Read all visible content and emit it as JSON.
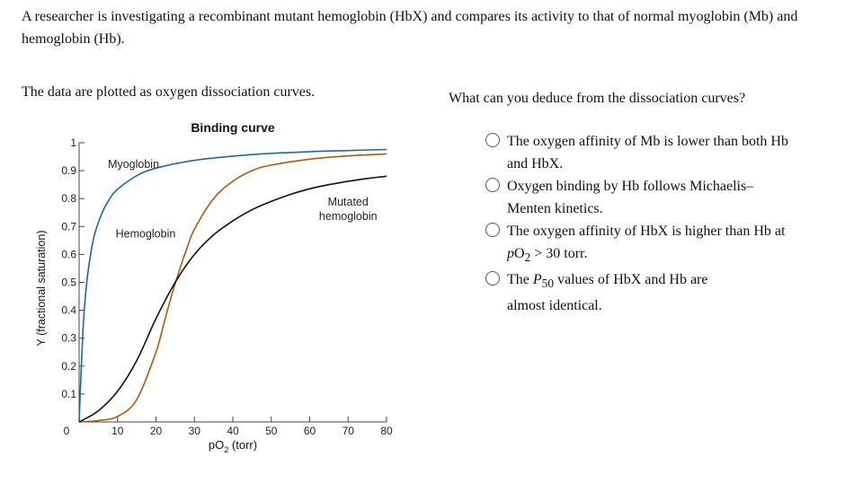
{
  "problem": {
    "intro": "A researcher is investigating a recombinant mutant hemoglobin (HbX) and compares its activity to that of normal myoglobin (Mb) and hemoglobin (Hb).",
    "data_note": "The data are plotted as oxygen dissociation curves.",
    "question": "What can you deduce from the dissociation curves?"
  },
  "options": [
    {
      "line1": "The oxygen affinity of Mb is lower than both Hb",
      "line2": "and HbX."
    },
    {
      "line1": "Oxygen binding by Hb follows Michaelis–",
      "line2": "Menten kinetics."
    },
    {
      "line1_pre": "The oxygen affinity of HbX is higher than Hb at",
      "line2_p": "p",
      "line2_o": "O",
      "line2_sub": "2",
      "line2_post": " > 30 torr."
    },
    {
      "line1_pre": "The ",
      "line1_p": "P",
      "line1_sub": "50",
      "line1_post": " values of HbX and Hb are",
      "line2": "almost identical."
    }
  ],
  "chart_data": {
    "type": "line",
    "title": "Binding curve",
    "xlabel_p": "pO",
    "xlabel_sub": "2",
    "xlabel_unit": " (torr)",
    "ylabel": "Y (fractional saturation)",
    "xlim": [
      0,
      80
    ],
    "ylim": [
      0,
      1
    ],
    "x_ticks": [
      "0",
      "10",
      "20",
      "30",
      "40",
      "50",
      "60",
      "70",
      "80"
    ],
    "y_ticks": [
      "0.1",
      "0.2",
      "0.3",
      "0.4",
      "0.5",
      "0.6",
      "0.7",
      "0.8",
      "0.9",
      "1"
    ],
    "grid": false,
    "series": [
      {
        "name": "Myoglobin",
        "color": "#1a6e8e",
        "label_x": 7.5,
        "label_y": 0.91,
        "x": [
          0,
          1,
          2,
          3,
          4,
          6,
          8,
          10,
          15,
          20,
          30,
          40,
          50,
          60,
          70,
          80
        ],
        "y": [
          0,
          0.33,
          0.5,
          0.6,
          0.67,
          0.75,
          0.8,
          0.833,
          0.882,
          0.909,
          0.937,
          0.952,
          0.962,
          0.968,
          0.972,
          0.976
        ]
      },
      {
        "name": "Hemoglobin",
        "color": "#b05a10",
        "label_x": 9.5,
        "label_y": 0.66,
        "x": [
          0,
          5,
          10,
          15,
          20,
          22,
          24,
          26,
          28,
          30,
          35,
          40,
          45,
          50,
          60,
          70,
          80
        ],
        "y": [
          0,
          0.005,
          0.02,
          0.08,
          0.25,
          0.35,
          0.45,
          0.54,
          0.62,
          0.69,
          0.8,
          0.862,
          0.9,
          0.92,
          0.941,
          0.953,
          0.96
        ]
      },
      {
        "name": "Mutated hemoglobin",
        "label_lines": [
          "Mutated",
          "hemoglobin"
        ],
        "color": "#111111",
        "label_x": 70,
        "label_y": 0.775,
        "x": [
          0,
          5,
          10,
          15,
          20,
          25,
          30,
          35,
          40,
          45,
          50,
          55,
          60,
          65,
          70,
          75,
          80
        ],
        "y": [
          0,
          0.04,
          0.11,
          0.22,
          0.37,
          0.5,
          0.6,
          0.67,
          0.72,
          0.76,
          0.79,
          0.815,
          0.835,
          0.85,
          0.862,
          0.872,
          0.88
        ]
      }
    ]
  }
}
